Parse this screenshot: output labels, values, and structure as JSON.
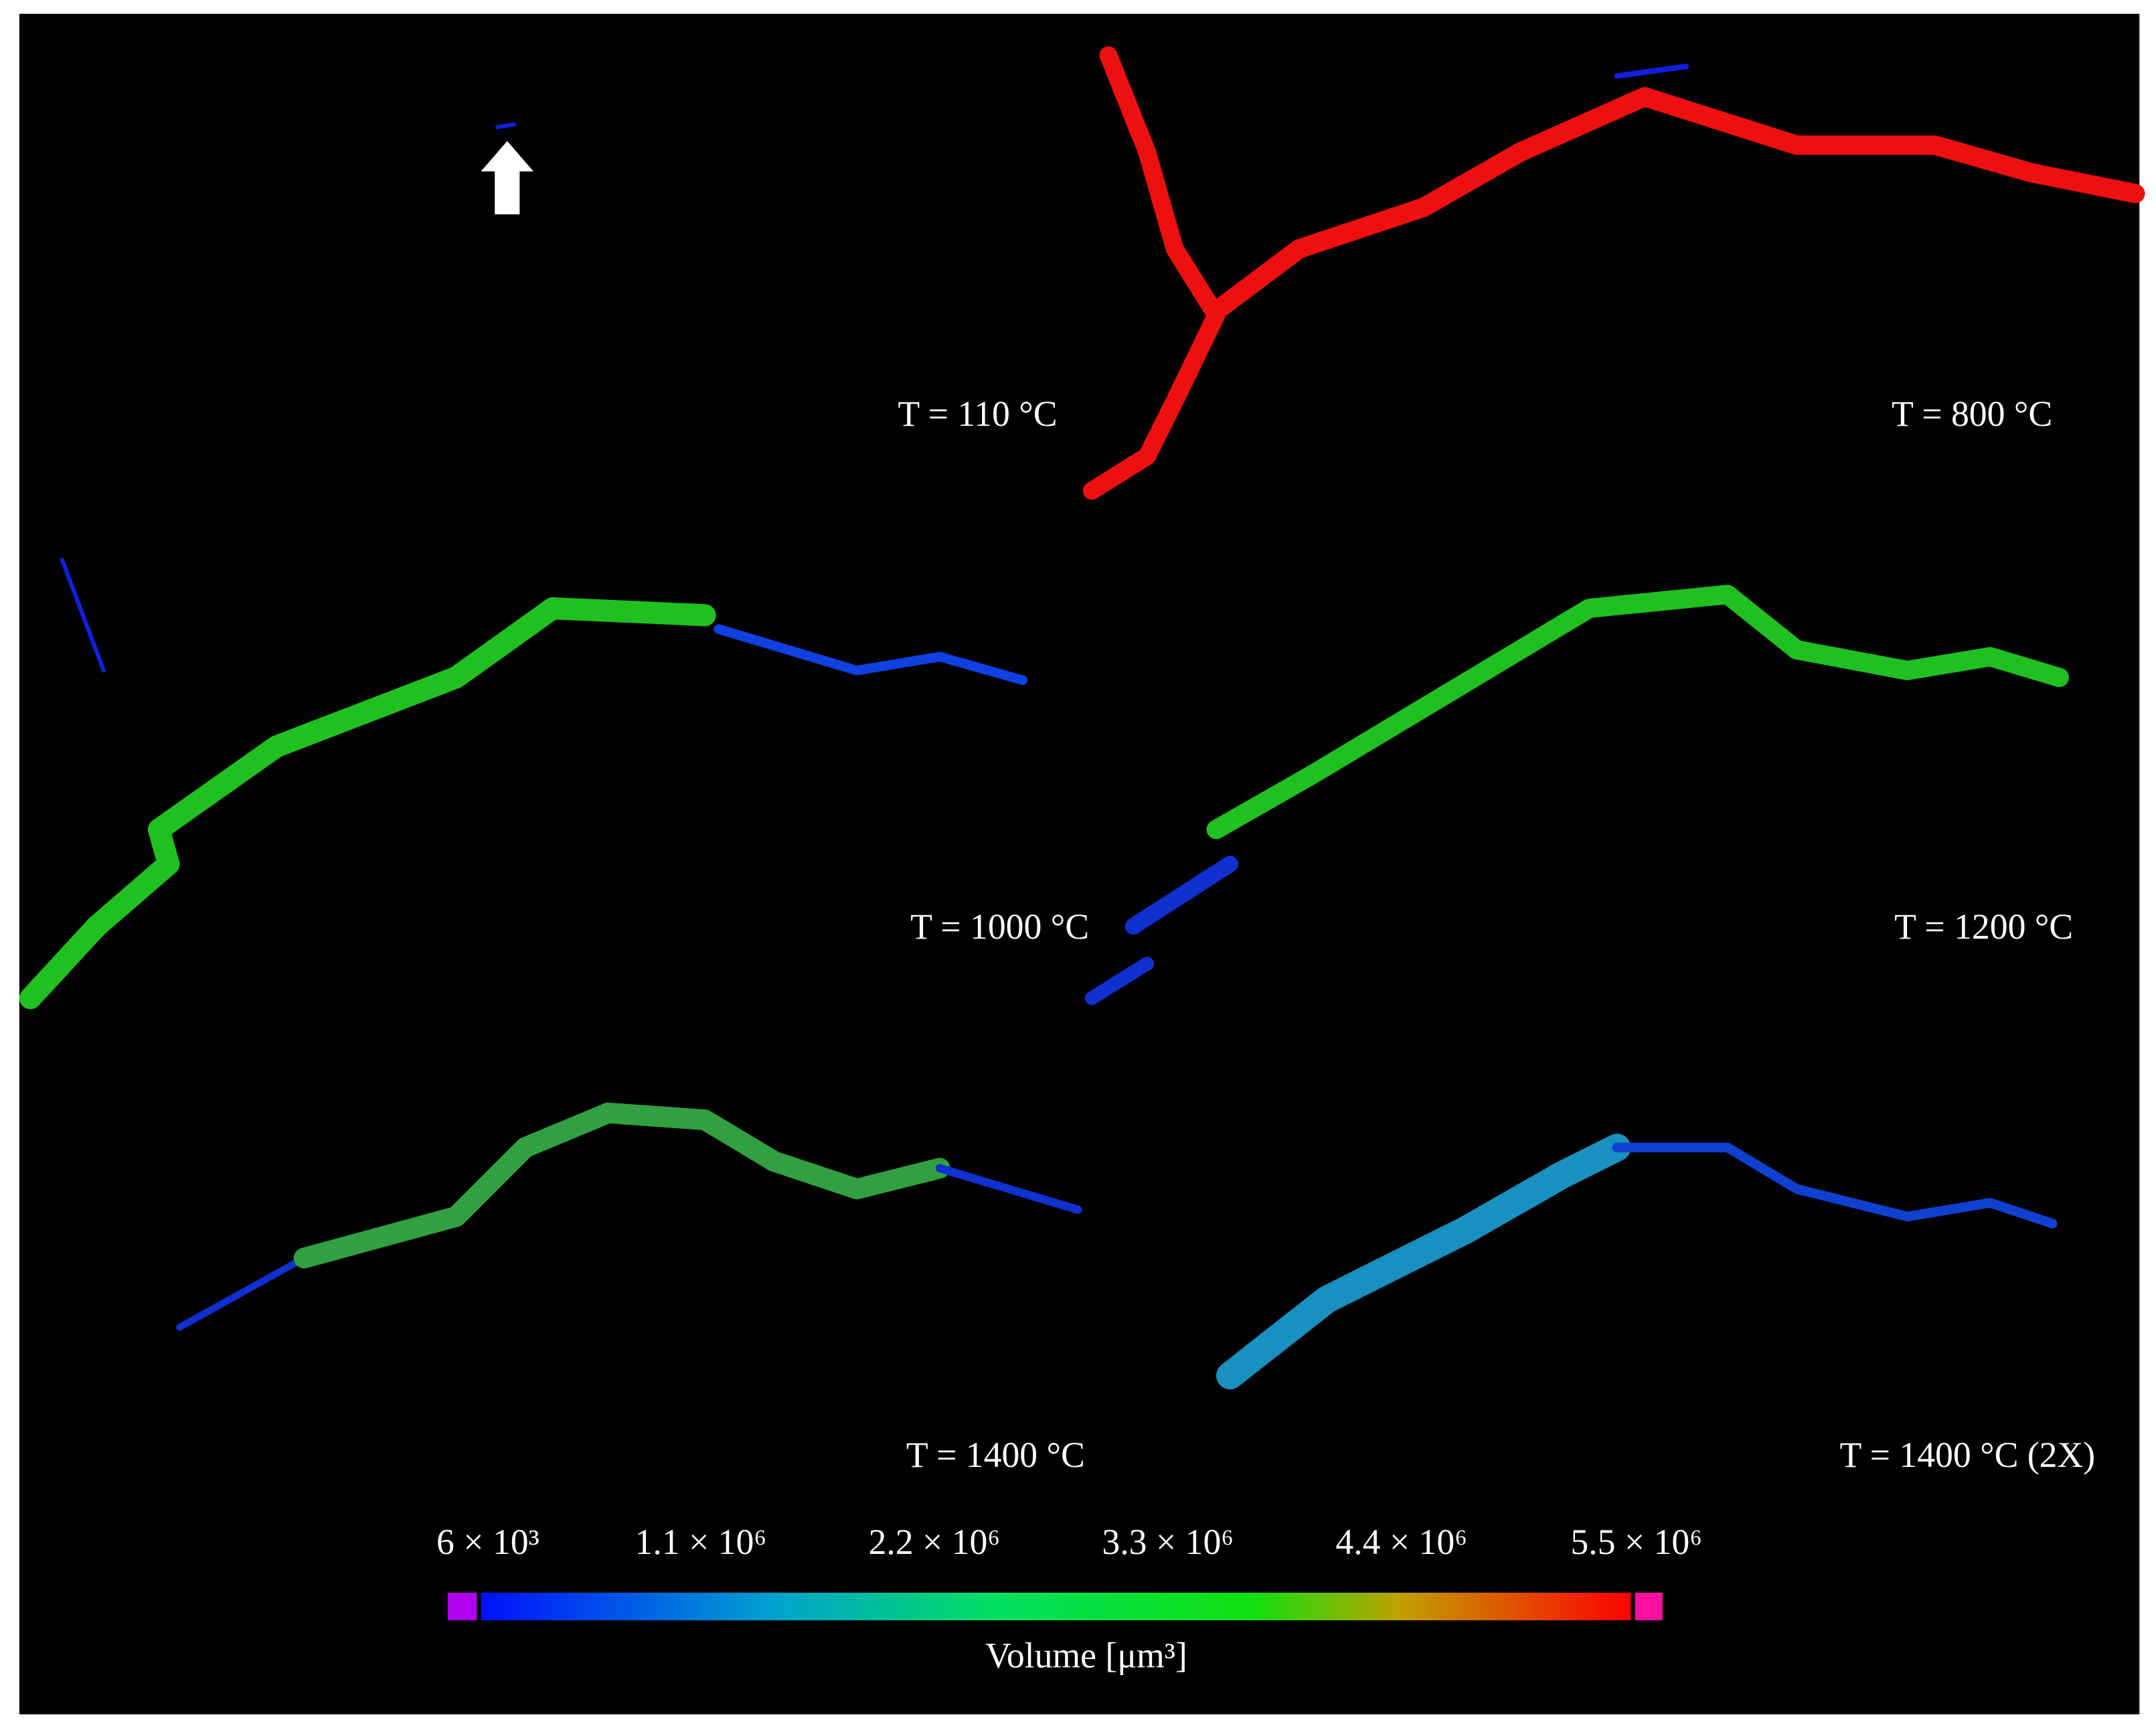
{
  "panels": [
    {
      "label": "T = 110 °C"
    },
    {
      "label": "T = 800 °C"
    },
    {
      "label": "T = 1000 °C"
    },
    {
      "label": "T = 1200 °C"
    },
    {
      "label": "T = 1400 °C"
    },
    {
      "label": "T = 1400 °C (2X)"
    }
  ],
  "colorbar": {
    "ticks": [
      "6 × 10³",
      "1.1 × 10⁶",
      "2.2 × 10⁶",
      "3.3 × 10⁶",
      "4.4 × 10⁶",
      "5.5 × 10⁶"
    ],
    "title": "Volume [μm³]"
  }
}
